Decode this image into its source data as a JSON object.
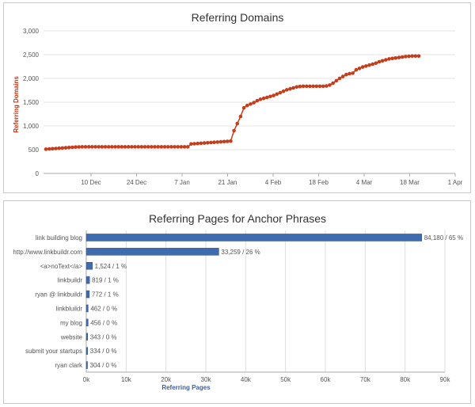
{
  "chart_data": [
    {
      "type": "line",
      "title": "Referring Domains",
      "ylabel": "Referring Domains",
      "xlabel": "",
      "ylim": [
        0,
        3000
      ],
      "y_ticks": [
        "0",
        "500",
        "1,000",
        "1,500",
        "2,000",
        "2,500",
        "3,000"
      ],
      "x_ticks": [
        "10 Dec",
        "24 Dec",
        "7 Jan",
        "21 Jan",
        "4 Feb",
        "18 Feb",
        "4 Mar",
        "18 Mar",
        "1 Apr"
      ],
      "grid": "horizontal",
      "color": "#c63d1b",
      "series": [
        {
          "values": [
            510,
            515,
            520,
            525,
            530,
            535,
            540,
            545,
            550,
            555,
            558,
            560,
            560,
            560,
            560,
            560,
            560,
            560,
            560,
            560,
            560,
            560,
            560,
            560,
            560,
            560,
            560,
            560,
            560,
            560,
            560,
            560,
            560,
            560,
            560,
            560,
            560,
            560,
            560,
            560,
            560,
            560,
            560,
            560,
            620,
            625,
            630,
            635,
            640,
            645,
            650,
            655,
            660,
            665,
            670,
            675,
            680,
            900,
            1050,
            1200,
            1380,
            1430,
            1460,
            1490,
            1530,
            1560,
            1580,
            1600,
            1620,
            1640,
            1670,
            1700,
            1730,
            1760,
            1780,
            1800,
            1820,
            1830,
            1835,
            1835,
            1835,
            1835,
            1835,
            1835,
            1835,
            1840,
            1860,
            1900,
            1950,
            2000,
            2040,
            2080,
            2100,
            2110,
            2180,
            2210,
            2240,
            2260,
            2280,
            2300,
            2320,
            2350,
            2370,
            2390,
            2410,
            2420,
            2430,
            2440,
            2450,
            2460,
            2465,
            2470,
            2470,
            2470
          ]
        }
      ]
    },
    {
      "type": "bar",
      "orientation": "horizontal",
      "title": "Referring Pages for Anchor Phrases",
      "xlabel": "Referring Pages",
      "ylabel": "",
      "xlim": [
        0,
        90000
      ],
      "x_ticks": [
        "0k",
        "10k",
        "20k",
        "30k",
        "40k",
        "50k",
        "60k",
        "70k",
        "80k",
        "90k"
      ],
      "grid": "vertical",
      "color": "#3f6bb0",
      "categories": [
        "link building blog",
        "http://www.linkbuildr.com",
        "<a>noText</a>",
        "linkbuildr",
        "ryan @ linkbuildr",
        "linkbluildr",
        "my blog",
        "website",
        "submit your startups",
        "ryan clark"
      ],
      "values": [
        84180,
        33259,
        1524,
        819,
        772,
        462,
        456,
        343,
        334,
        304
      ],
      "data_labels": [
        "84,180 / 65 %",
        "33,259 / 26 %",
        "1,524 / 1 %",
        "819 / 1 %",
        "772 / 1 %",
        "462 / 0 %",
        "456 / 0 %",
        "343 / 0 %",
        "334 / 0 %",
        "304 / 0 %"
      ]
    }
  ]
}
